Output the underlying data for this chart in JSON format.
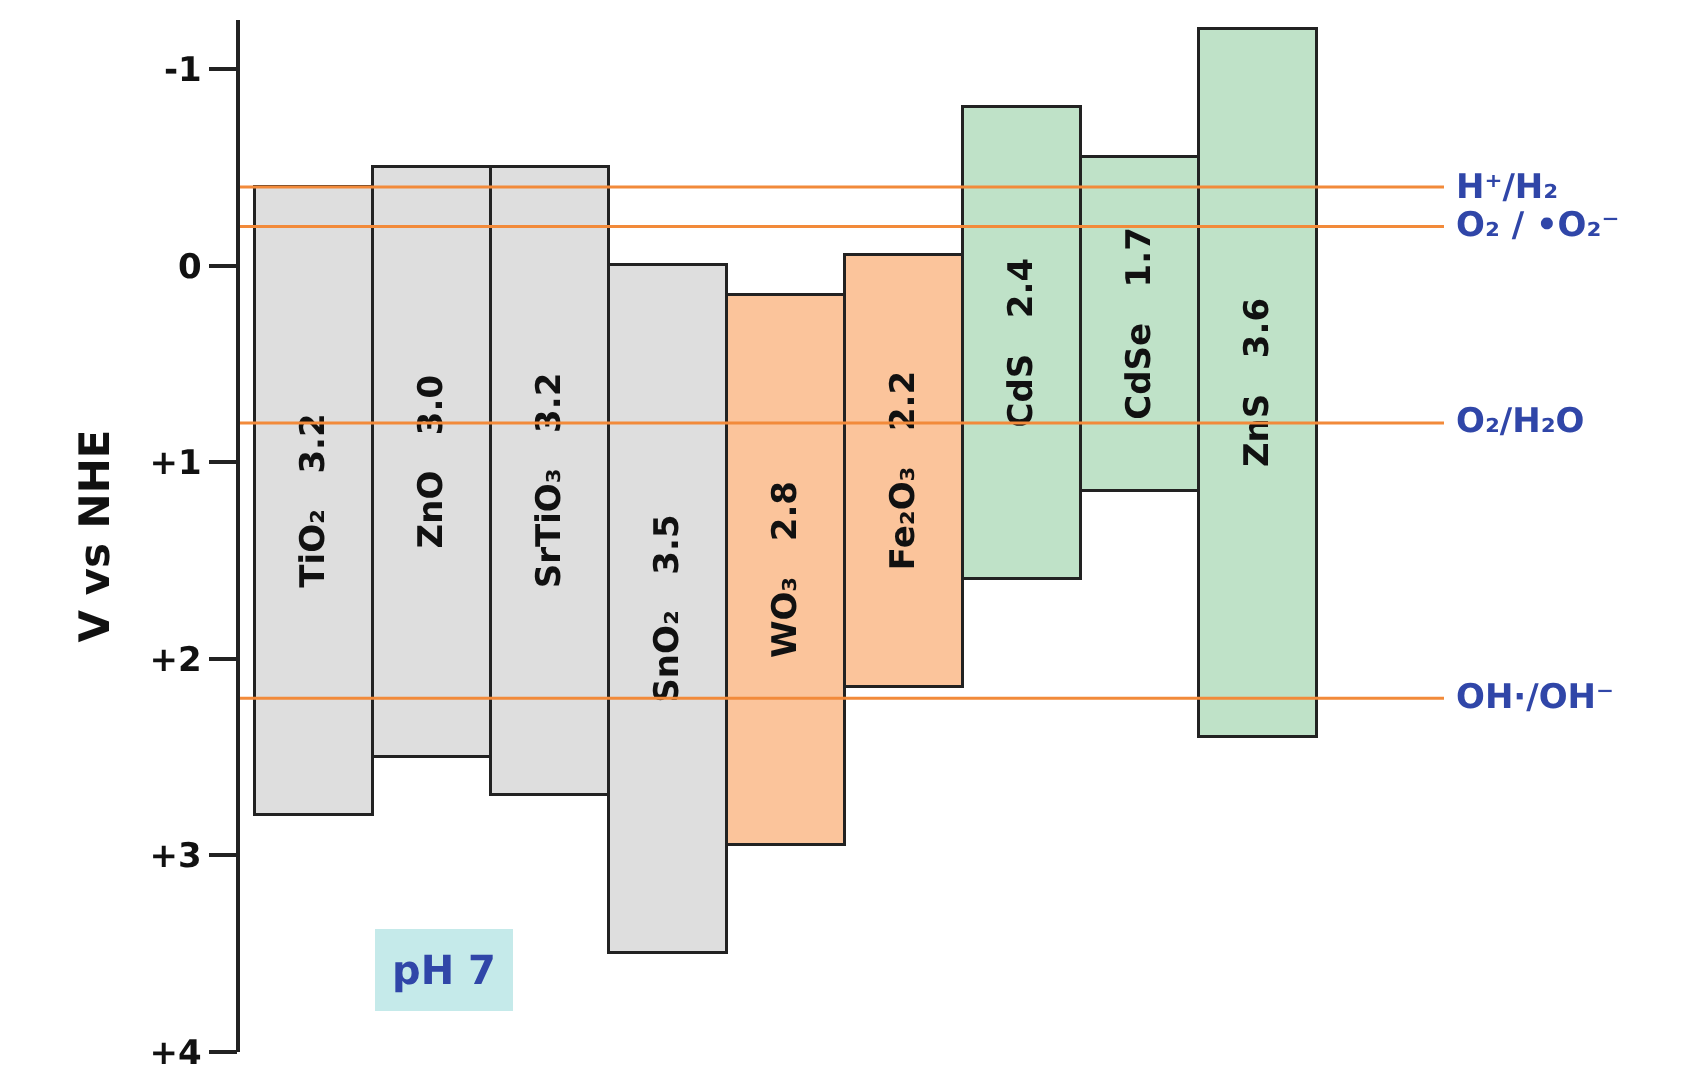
{
  "chart_data": {
    "type": "bar",
    "ylabel": "V vs NHE",
    "categories": [
      "TiO₂",
      "ZnO",
      "SrTiO₃",
      "SnO₂",
      "WO₃",
      "Fe₂O₃",
      "CdS",
      "CdSe",
      "ZnS"
    ],
    "base": [
      -0.4,
      -0.5,
      -0.5,
      0,
      0.15,
      -0.05,
      -0.8,
      -0.55,
      -1.2
    ],
    "values": [
      3.2,
      3.0,
      3.2,
      3.5,
      2.8,
      2.2,
      2.4,
      1.7,
      3.6
    ],
    "value_labels": [
      "3.2",
      "3.0",
      "3.2",
      "3.5",
      "2.8",
      "2.2",
      "2.4",
      "1.7",
      "3.6"
    ],
    "colors": [
      "#dedede",
      "#dedede",
      "#dedede",
      "#dedede",
      "#fbc49b",
      "#fbc49b",
      "#bfe2c8",
      "#bfe2c8",
      "#bfe2c8"
    ],
    "ylim": [
      4,
      -1.25
    ],
    "yticks": [
      {
        "value": -1,
        "label": "-1"
      },
      0,
      {
        "value": 1,
        "label": "+1"
      },
      {
        "value": 2,
        "label": "+2"
      },
      {
        "value": 3,
        "label": "+3"
      },
      {
        "value": 4,
        "label": "+4"
      }
    ],
    "ref_lines": [
      {
        "axis": "y",
        "value": -0.4,
        "label": "H⁺/H₂",
        "color": "#f28a3a"
      },
      {
        "axis": "y",
        "value": -0.2,
        "label": "O₂ / •O₂⁻",
        "color": "#f28a3a"
      },
      {
        "axis": "y",
        "value": 0.8,
        "label": "O₂/H₂O",
        "color": "#f28a3a"
      },
      {
        "axis": "y",
        "value": 2.2,
        "label": "OH·/OH⁻",
        "color": "#f28a3a"
      }
    ],
    "annotations": [
      "pH 7"
    ],
    "tick_labels": "y",
    "grid": false
  }
}
